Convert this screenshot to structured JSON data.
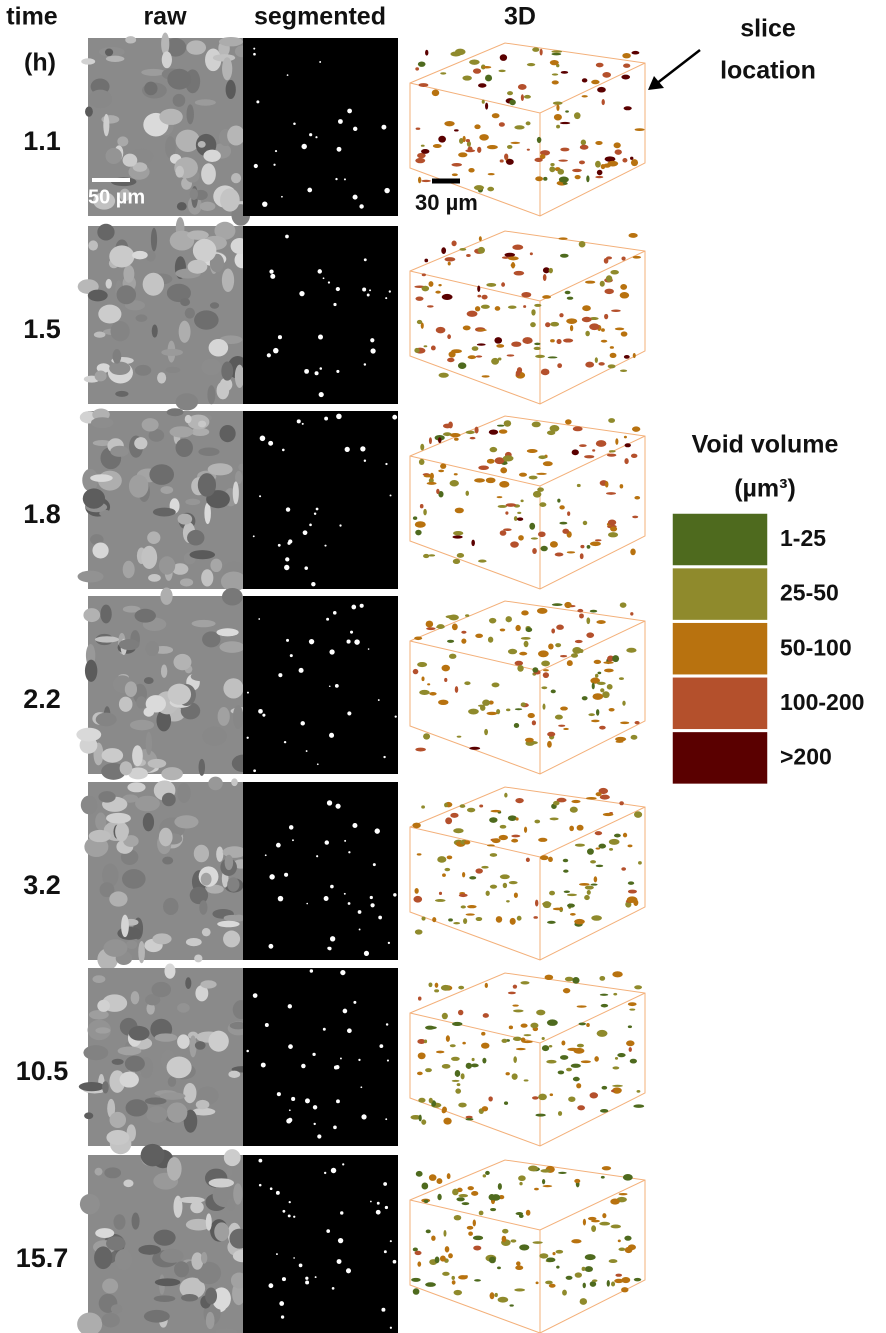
{
  "headers": {
    "time": "time",
    "time_unit": "(h)",
    "raw": "raw",
    "segmented": "segmented",
    "volume": "3D"
  },
  "rows": [
    {
      "time": "1.1"
    },
    {
      "time": "1.5"
    },
    {
      "time": "1.8"
    },
    {
      "time": "2.2"
    },
    {
      "time": "3.2"
    },
    {
      "time": "10.5"
    },
    {
      "time": "15.7"
    }
  ],
  "scale_bars": {
    "raw": "50 µm",
    "volume": "30 µm"
  },
  "annotation": [
    "slice",
    "location"
  ],
  "legend": {
    "title": "Void volume",
    "unit": "(µm³)",
    "items": [
      {
        "label": "1-25",
        "color": "#4e6a1e"
      },
      {
        "label": "25-50",
        "color": "#8f8a2c"
      },
      {
        "label": "50-100",
        "color": "#b8720f"
      },
      {
        "label": "100-200",
        "color": "#b4502c"
      },
      {
        "label": ">200",
        "color": "#5a0000"
      }
    ]
  }
}
